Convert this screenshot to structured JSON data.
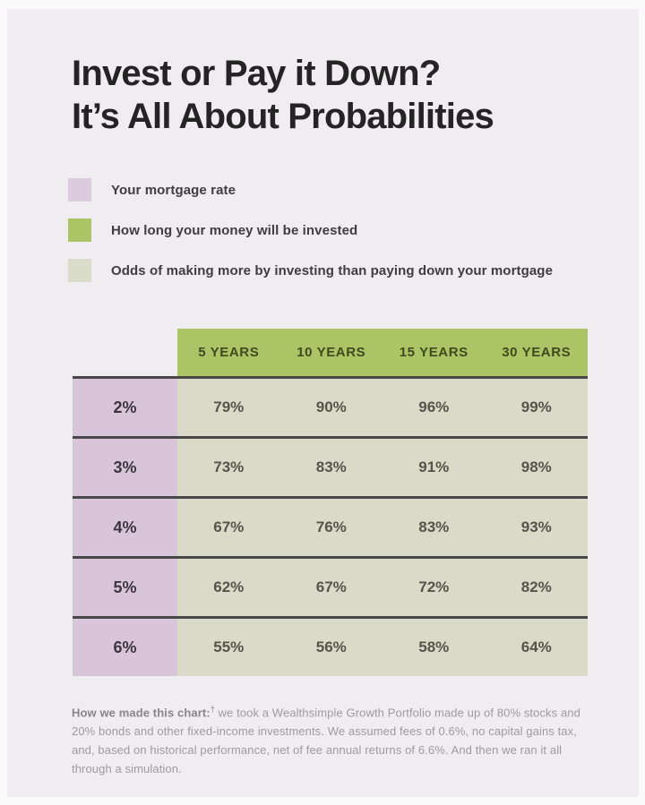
{
  "title": {
    "line1": "Invest or Pay it Down?",
    "line2": "It’s All About Probabilities"
  },
  "legend": {
    "items": [
      {
        "label": "Your mortgage rate",
        "color": "#dccade"
      },
      {
        "label": "How long your money will be invested",
        "color": "#abc566"
      },
      {
        "label": "Odds of making more by investing than paying down your mortgage",
        "color": "#d8dcc8"
      }
    ]
  },
  "chart_data": {
    "type": "table",
    "title": "Invest or Pay it Down? It's All About Probabilities",
    "row_dimension": "Your mortgage rate",
    "column_dimension": "How long your money will be invested",
    "cell_meaning": "Odds of making more by investing than paying down your mortgage",
    "columns": [
      "5 YEARS",
      "10 YEARS",
      "15 YEARS",
      "30 YEARS"
    ],
    "rows": [
      {
        "rate": "2%",
        "values": [
          "79%",
          "90%",
          "96%",
          "99%"
        ]
      },
      {
        "rate": "3%",
        "values": [
          "73%",
          "83%",
          "91%",
          "98%"
        ]
      },
      {
        "rate": "4%",
        "values": [
          "67%",
          "76%",
          "83%",
          "93%"
        ]
      },
      {
        "rate": "5%",
        "values": [
          "62%",
          "67%",
          "72%",
          "82%"
        ]
      },
      {
        "rate": "6%",
        "values": [
          "55%",
          "56%",
          "58%",
          "64%"
        ]
      }
    ]
  },
  "footnote": {
    "lead": "How we made this chart:",
    "dagger": "†",
    "body": " we took a Wealthsimple Growth Portfolio made up of 80% stocks and 20% bonds and other fixed-income investments. We assumed fees of 0.6%, no capital gains tax, and, based on historical performance, net of fee annual returns of 6.6%. And then we ran it all through a simulation."
  },
  "colors": {
    "panel_bg": "#efedef",
    "outer_bg": "#fafafa",
    "lilac": "#d8c5da",
    "lilac_legend": "#dccade",
    "green": "#abc566",
    "sage": "#d9dbc8",
    "sage_legend": "#d8dcc8",
    "divider": "#474747",
    "title_text": "#242424",
    "header_text": "#3e4b1d",
    "value_text": "#55544c",
    "rate_text": "#3d3542",
    "legend_text": "#3e3e3e",
    "footnote_text": "#9c9c9c",
    "footnote_lead": "#878787"
  }
}
